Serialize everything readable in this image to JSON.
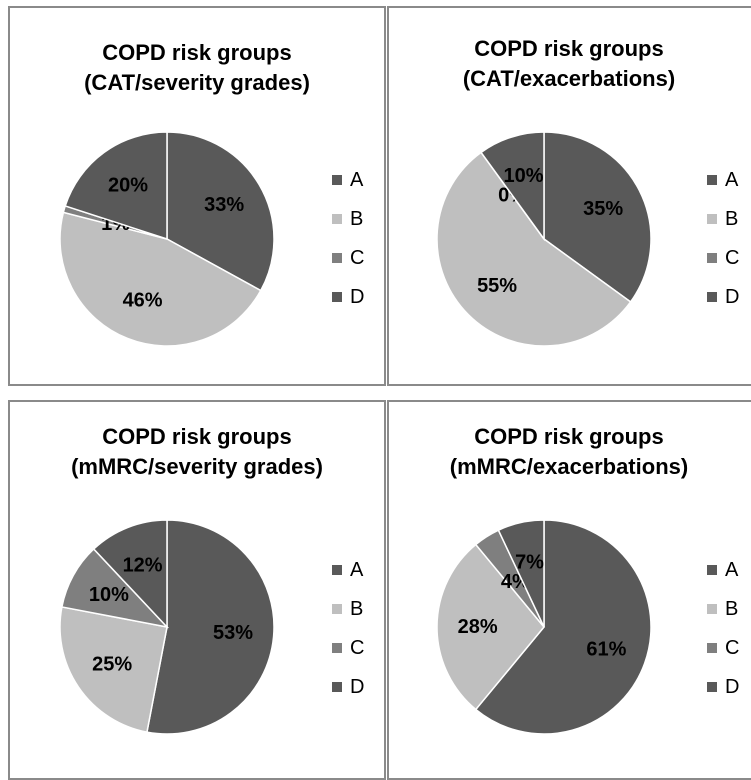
{
  "colors": {
    "A": "#595959",
    "B": "#bfbfbf",
    "C": "#7f7f7f",
    "D": "#595959"
  },
  "chart_data": [
    {
      "type": "pie",
      "title": "COPD risk groups (CAT/severity grades)",
      "title_lines": [
        "COPD risk groups",
        "(CAT/severity grades)"
      ],
      "categories": [
        "A",
        "B",
        "C",
        "D"
      ],
      "values": [
        33,
        46,
        1,
        20
      ],
      "labels": [
        "33%",
        "46%",
        "1%",
        "20%"
      ],
      "legend": "right"
    },
    {
      "type": "pie",
      "title": "COPD risk groups (CAT/exacerbations)",
      "title_lines": [
        "COPD risk groups",
        "(CAT/exacerbations)"
      ],
      "categories": [
        "A",
        "B",
        "C",
        "D"
      ],
      "values": [
        35,
        55,
        0,
        10
      ],
      "labels": [
        "35%",
        "55%",
        "0%",
        "10%"
      ],
      "legend": "right"
    },
    {
      "type": "pie",
      "title": "COPD risk groups (mMRC/severity grades)",
      "title_lines": [
        "COPD risk groups",
        "(mMRC/severity grades)"
      ],
      "categories": [
        "A",
        "B",
        "C",
        "D"
      ],
      "values": [
        53,
        25,
        10,
        12
      ],
      "labels": [
        "53%",
        "25%",
        "10%",
        "12%"
      ],
      "legend": "right"
    },
    {
      "type": "pie",
      "title": "COPD risk groups (mMRC/exacerbations)",
      "title_lines": [
        "COPD risk groups",
        "(mMRC/exacerbations)"
      ],
      "categories": [
        "A",
        "B",
        "C",
        "D"
      ],
      "values": [
        61,
        28,
        4,
        7
      ],
      "labels": [
        "61%",
        "28%",
        "4%",
        "7%"
      ],
      "legend": "right"
    }
  ]
}
